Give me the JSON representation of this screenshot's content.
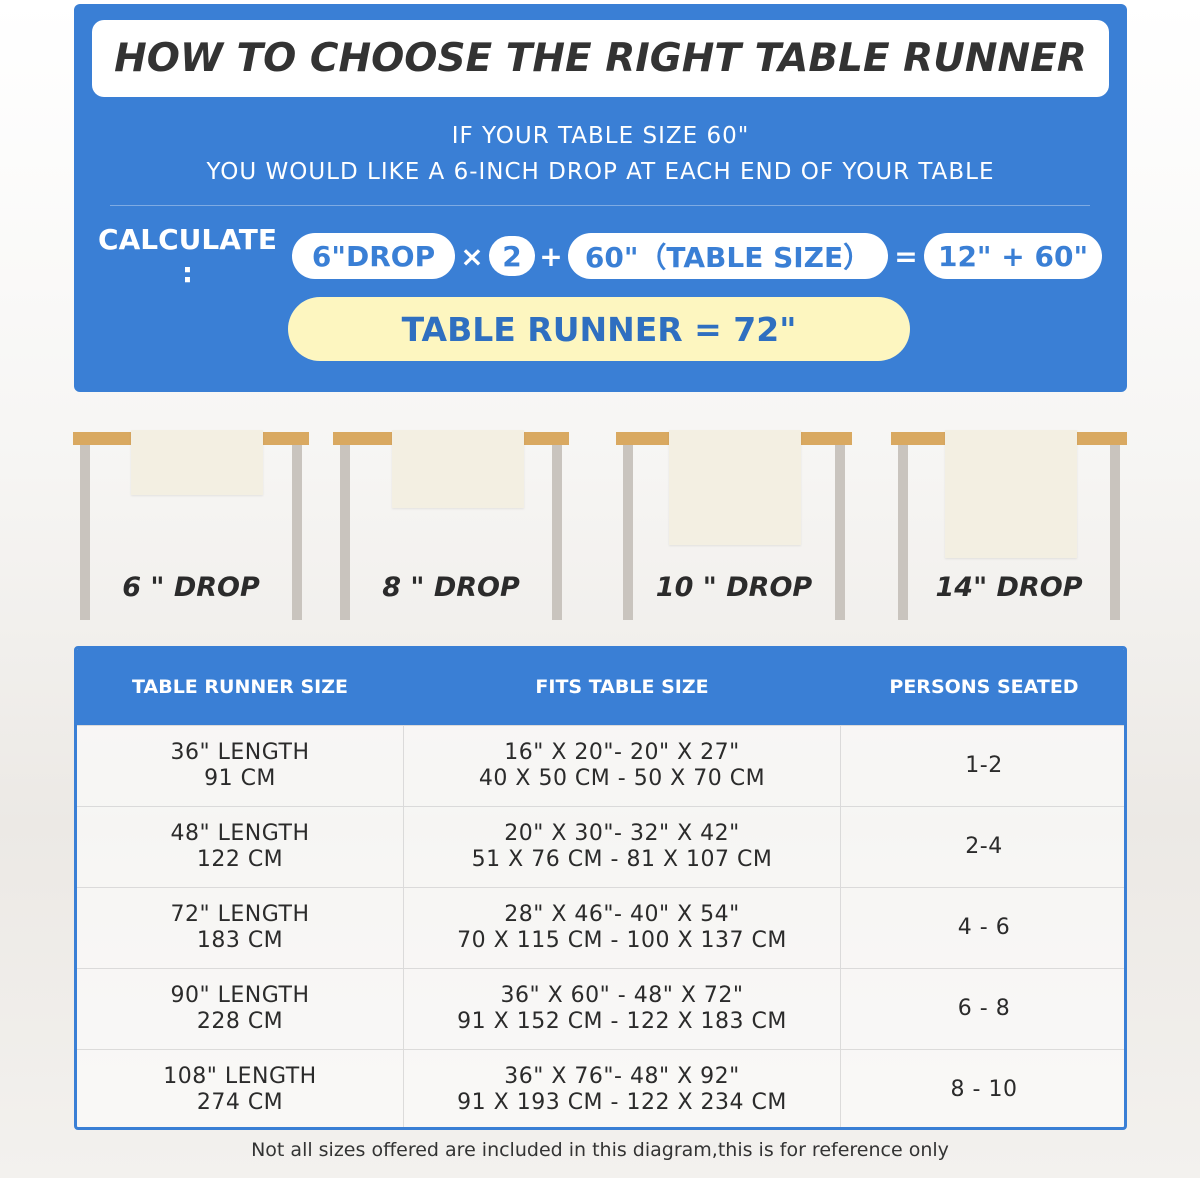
{
  "header": {
    "title": "HOW TO CHOOSE THE RIGHT TABLE RUNNER",
    "line1": "IF YOUR TABLE SIZE 60\"",
    "line2": "YOU WOULD LIKE A 6-INCH DROP AT EACH END OF YOUR TABLE"
  },
  "calc": {
    "label": "CALCULATE :",
    "drop": "6\"DROP",
    "times": "×",
    "two": "2",
    "plus": "+",
    "table": "60\"（TABLE SIZE）",
    "equals": "=",
    "sum": "12\" + 60\"",
    "result": "TABLE RUNNER = 72\""
  },
  "drops": [
    {
      "label": "6 \" DROP"
    },
    {
      "label": "8 \" DROP"
    },
    {
      "label": "10 \" DROP"
    },
    {
      "label": "14\" DROP"
    }
  ],
  "table": {
    "headers": [
      "TABLE RUNNER SIZE",
      "FITS TABLE SIZE",
      "PERSONS SEATED"
    ],
    "rows": [
      {
        "size1": "36\" LENGTH",
        "size2": "91 CM",
        "fit1": "16\" X 20\"- 20\" X 27\"",
        "fit2": "40 X 50 CM - 50 X 70 CM",
        "persons": "1-2"
      },
      {
        "size1": "48\" LENGTH",
        "size2": "122 CM",
        "fit1": "20\" X 30\"- 32\" X 42\"",
        "fit2": "51 X 76 CM - 81 X 107 CM",
        "persons": "2-4"
      },
      {
        "size1": "72\" LENGTH",
        "size2": "183 CM",
        "fit1": "28\" X 46\"- 40\" X 54\"",
        "fit2": "70 X 115 CM - 100 X 137 CM",
        "persons": "4 - 6"
      },
      {
        "size1": "90\" LENGTH",
        "size2": "228 CM",
        "fit1": "36\" X 60\" - 48\" X 72\"",
        "fit2": "91 X 152 CM - 122 X 183 CM",
        "persons": "6 - 8"
      },
      {
        "size1": "108\" LENGTH",
        "size2": "274 CM",
        "fit1": "36\" X 76\"- 48\" X 92\"",
        "fit2": "91 X 193 CM - 122 X 234 CM",
        "persons": "8 - 10"
      }
    ]
  },
  "footnote": "Not all sizes offered are included in this diagram,this is for reference only",
  "colors": {
    "brand_blue": "#3a7fd5",
    "result_bg": "#fdf6c0",
    "tabletop": "#d9a961"
  }
}
